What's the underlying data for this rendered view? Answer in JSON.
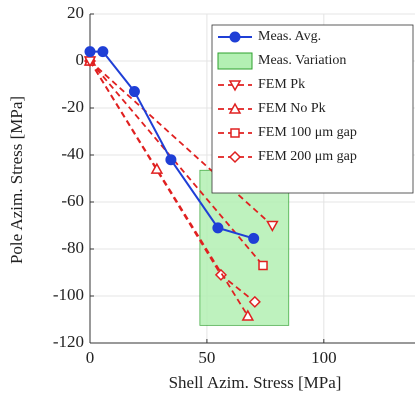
{
  "chart_data": {
    "type": "line",
    "xlabel": "Shell Azim. Stress [MPa]",
    "ylabel": "Pole Azim. Stress [MPa]",
    "xlim": [
      0,
      139
    ],
    "ylim": [
      -120,
      20
    ],
    "xticks": [
      0,
      50,
      100
    ],
    "yticks": [
      20,
      0,
      -20,
      -40,
      -60,
      -80,
      -100,
      -120
    ],
    "grid": true,
    "region": {
      "name": "Meas. Variation",
      "color": "#b3f0b3",
      "edge": "#2ca02c",
      "xlim": [
        47,
        85
      ],
      "ylim": [
        -112.5,
        -46.5
      ]
    },
    "series": [
      {
        "name": "Meas. Avg.",
        "color": "#1f3fd6",
        "marker": "circle",
        "dash": false,
        "x": [
          0,
          5.5,
          19,
          34.6,
          54.7,
          70
        ],
        "values": [
          4,
          4,
          -13,
          -42,
          -71,
          -75.5
        ]
      },
      {
        "name": "FEM Pk",
        "color": "#e02020",
        "marker": "tri-down",
        "dash": true,
        "x": [
          0,
          78
        ],
        "values": [
          0,
          -70
        ]
      },
      {
        "name": "FEM No Pk",
        "color": "#e02020",
        "marker": "tri-up",
        "dash": true,
        "x": [
          0,
          28.6,
          67.5
        ],
        "values": [
          0,
          -46,
          -108.5
        ]
      },
      {
        "name": "FEM 100 μm gap",
        "color": "#e02020",
        "marker": "square",
        "dash": true,
        "x": [
          0,
          74
        ],
        "values": [
          0,
          -87
        ]
      },
      {
        "name": "FEM 200 μm gap",
        "color": "#e02020",
        "marker": "diamond",
        "dash": true,
        "x": [
          0,
          56,
          70.5
        ],
        "values": [
          0,
          -91,
          -102.5
        ]
      }
    ]
  }
}
